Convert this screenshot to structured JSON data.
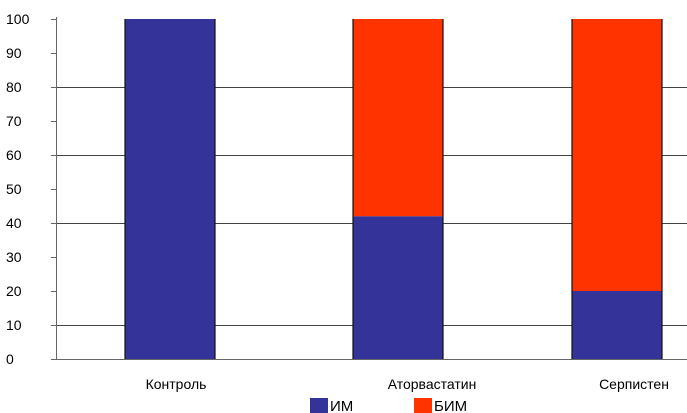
{
  "chart_data": {
    "type": "bar",
    "stacked": true,
    "categories": [
      "Контроль",
      "Аторвастатин",
      "Серпистен"
    ],
    "series": [
      {
        "name": "ИМ",
        "values": [
          100,
          42,
          20
        ],
        "color": "#333399"
      },
      {
        "name": "БИМ",
        "values": [
          0,
          58,
          80
        ],
        "color": "#ff3300"
      }
    ],
    "title": "",
    "xlabel": "",
    "ylabel": "",
    "ylim": [
      0,
      100
    ],
    "yticks": [
      0,
      10,
      20,
      30,
      40,
      50,
      60,
      70,
      80,
      90,
      100
    ],
    "ytick_labels": [
      "0",
      "10",
      "20",
      "30",
      "40",
      "50",
      "60",
      "70",
      "80",
      "90",
      "100"
    ],
    "gridlines": [
      10,
      40,
      60,
      80
    ],
    "grid": true,
    "legend_position": "bottom"
  }
}
